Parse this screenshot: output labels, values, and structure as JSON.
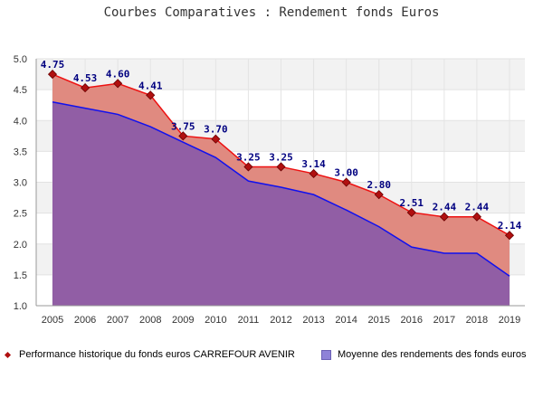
{
  "chart_data": {
    "type": "area",
    "title": "Courbes Comparatives : Rendement fonds Euros",
    "xlabel": "",
    "ylabel": "",
    "categories": [
      "2005",
      "2006",
      "2007",
      "2008",
      "2009",
      "2010",
      "2011",
      "2012",
      "2013",
      "2014",
      "2015",
      "2016",
      "2017",
      "2018",
      "2019"
    ],
    "ylim": [
      1.0,
      5.0
    ],
    "yticks": [
      "1.0",
      "1.5",
      "2.0",
      "2.5",
      "3.0",
      "3.5",
      "4.0",
      "4.5",
      "5.0"
    ],
    "grid": "horizontal bands",
    "legend_position": "bottom",
    "series": [
      {
        "name": "Performance historique du fonds euros CARREFOUR AVENIR",
        "values": [
          4.75,
          4.53,
          4.6,
          4.41,
          3.75,
          3.7,
          3.25,
          3.25,
          3.14,
          3.0,
          2.8,
          2.51,
          2.44,
          2.44,
          2.14
        ],
        "labels": [
          "4.75",
          "4.53",
          "4.60",
          "4.41",
          "3.75",
          "3.70",
          "3.25",
          "3.25",
          "3.14",
          "3.00",
          "2.80",
          "2.51",
          "2.44",
          "2.44",
          "2.14"
        ],
        "line_color": "#ee1111",
        "fill_color": "#e08a80",
        "marker_color": "#b01010"
      },
      {
        "name": "Moyenne des rendements des fonds euros",
        "values": [
          4.3,
          4.2,
          4.1,
          3.9,
          3.65,
          3.4,
          3.02,
          2.92,
          2.8,
          2.55,
          2.28,
          1.95,
          1.85,
          1.85,
          1.48
        ],
        "line_color": "#1111ee",
        "fill_color": "#8a5aa8"
      }
    ]
  }
}
